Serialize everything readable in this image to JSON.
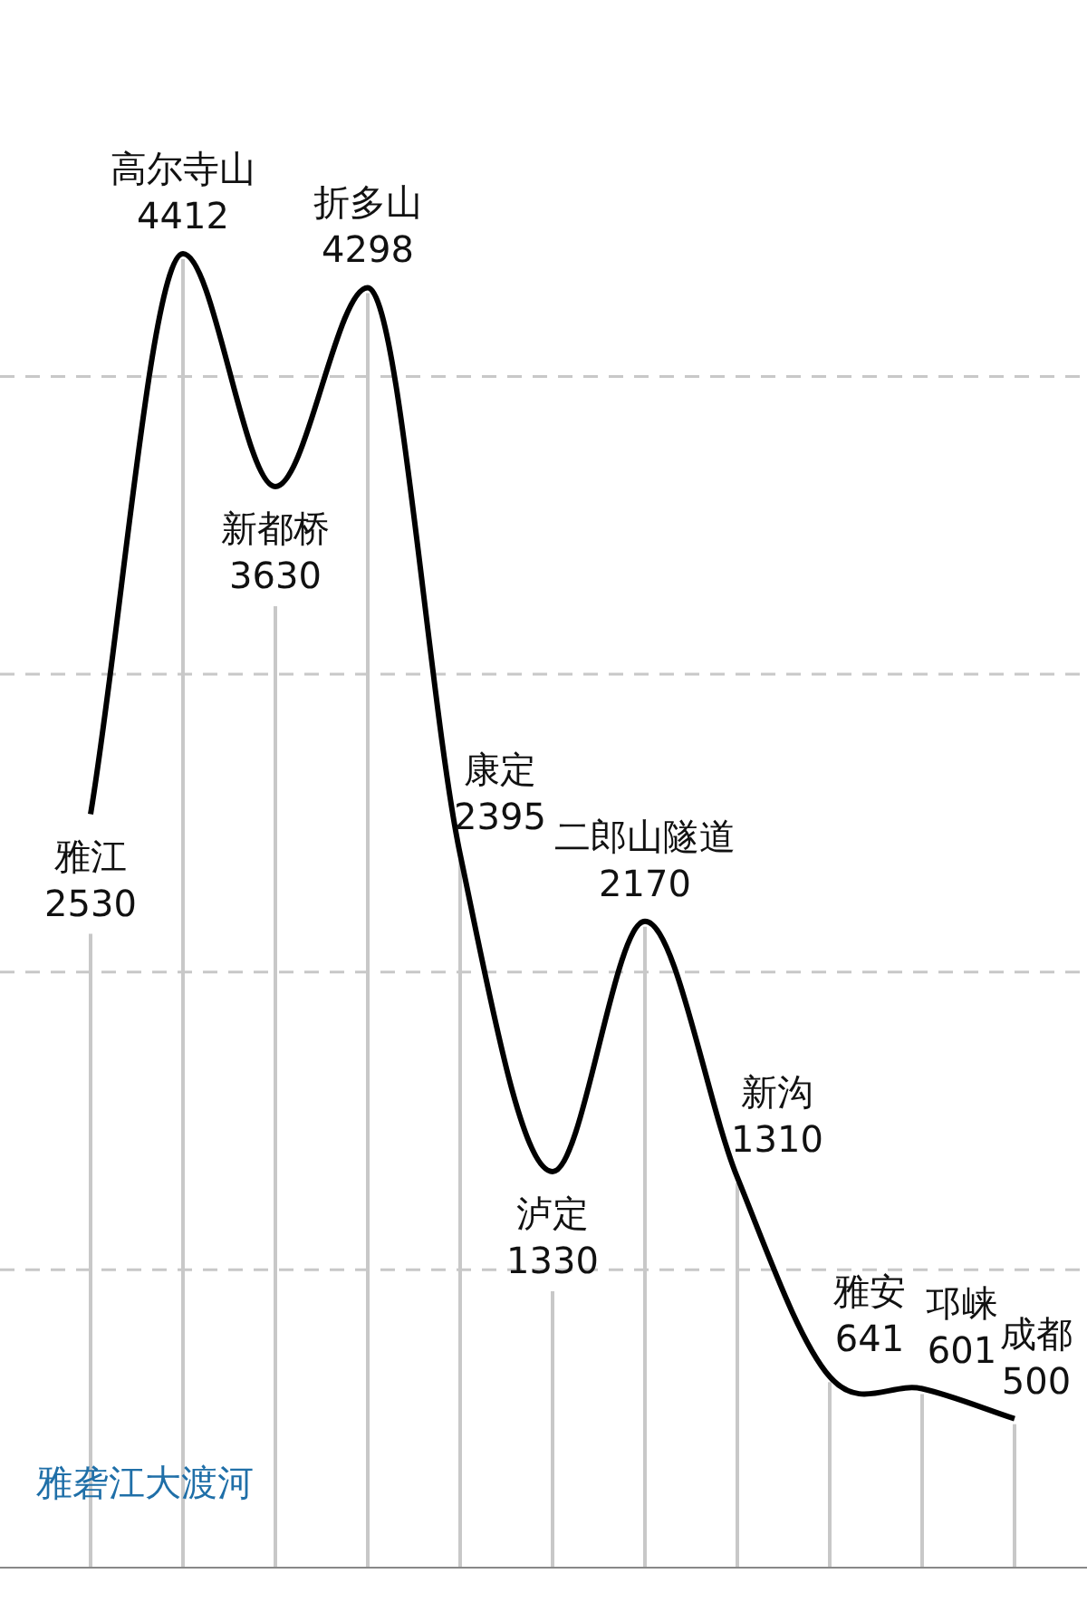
{
  "chart_data": {
    "type": "line",
    "categories": [
      "雅江",
      "高尔寺山",
      "新都桥",
      "折多山",
      "康定",
      "泸定",
      "二郎山隧道",
      "新沟",
      "雅安",
      "邛崃",
      "成都"
    ],
    "series": [
      {
        "color": "#000000",
        "values": [
          2530,
          4412,
          3630,
          4298,
          2395,
          1330,
          2170,
          1310,
          641,
          601,
          500
        ]
      }
    ],
    "data_labels": true,
    "yticks": [
      {
        "value": 1000,
        "label": null
      },
      {
        "value": 2000,
        "label": null
      },
      {
        "value": 3000,
        "label": null
      },
      {
        "value": 4000,
        "label": null
      }
    ],
    "grid": true,
    "marker": "none",
    "annotations": [
      "雅砻江",
      "大渡河"
    ]
  }
}
